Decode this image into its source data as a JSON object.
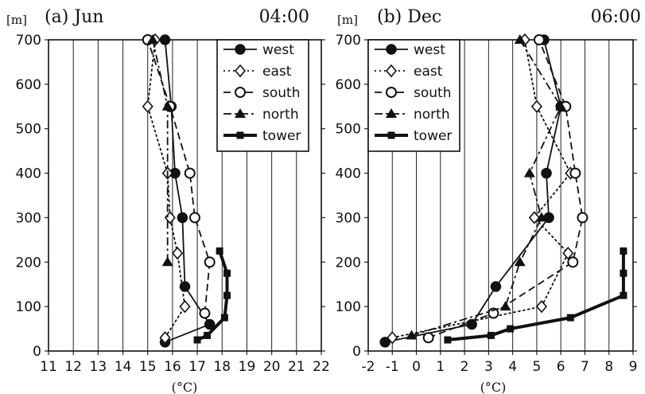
{
  "chart_data": [
    {
      "type": "line",
      "title": "(a) Jun",
      "time_label": "04:00",
      "ylabel": "[m]",
      "xlabel": "(°C)",
      "xlim": [
        11,
        22
      ],
      "ylim": [
        0,
        700
      ],
      "xticks": [
        "11",
        "12",
        "13",
        "14",
        "15",
        "16",
        "17",
        "18",
        "19",
        "20",
        "21",
        "22"
      ],
      "yticks": [
        "0",
        "100",
        "200",
        "300",
        "400",
        "500",
        "600",
        "700"
      ],
      "grid": "vertical",
      "legend": "top-right",
      "series": [
        {
          "name": "west",
          "marker": "filled-circle",
          "line": "solid",
          "points": [
            [
              15.7,
              20
            ],
            [
              17.5,
              60
            ],
            [
              16.5,
              145
            ],
            [
              16.4,
              300
            ],
            [
              16.1,
              400
            ],
            [
              15.95,
              550
            ],
            [
              15.7,
              700
            ]
          ]
        },
        {
          "name": "east",
          "marker": "open-diamond",
          "line": "dotted",
          "points": [
            [
              15.7,
              30
            ],
            [
              16.5,
              100
            ],
            [
              16.2,
              220
            ],
            [
              15.9,
              300
            ],
            [
              15.8,
              400
            ],
            [
              15.0,
              550
            ],
            [
              15.3,
              700
            ]
          ]
        },
        {
          "name": "south",
          "marker": "open-circle",
          "line": "dashed",
          "points": [
            [
              17.3,
              85
            ],
            [
              17.5,
              200
            ],
            [
              16.9,
              300
            ],
            [
              16.7,
              400
            ],
            [
              15.9,
              550
            ],
            [
              15.0,
              700
            ]
          ]
        },
        {
          "name": "north",
          "marker": "filled-triangle",
          "line": "dash-dot",
          "points": [
            [
              15.8,
              200
            ],
            [
              15.8,
              550
            ],
            [
              15.2,
              700
            ]
          ]
        },
        {
          "name": "tower",
          "marker": "filled-square",
          "line": "thick",
          "points": [
            [
              17.0,
              25
            ],
            [
              17.4,
              35
            ],
            [
              18.1,
              75
            ],
            [
              18.2,
              125
            ],
            [
              18.2,
              175
            ],
            [
              17.9,
              225
            ]
          ]
        }
      ]
    },
    {
      "type": "line",
      "title": "(b) Dec",
      "time_label": "06:00",
      "ylabel": "[m]",
      "xlabel": "(°C)",
      "xlim": [
        -2,
        9
      ],
      "ylim": [
        0,
        700
      ],
      "xticks": [
        "-2",
        "-1",
        "0",
        "1",
        "2",
        "3",
        "4",
        "5",
        "6",
        "7",
        "8",
        "9"
      ],
      "yticks": [
        "0",
        "100",
        "200",
        "300",
        "400",
        "500",
        "600",
        "700"
      ],
      "grid": "vertical",
      "legend": "top-left",
      "series": [
        {
          "name": "west",
          "marker": "filled-circle",
          "line": "solid",
          "points": [
            [
              -1.3,
              20
            ],
            [
              2.3,
              60
            ],
            [
              3.3,
              145
            ],
            [
              5.5,
              300
            ],
            [
              5.4,
              400
            ],
            [
              6.0,
              550
            ],
            [
              5.3,
              700
            ]
          ]
        },
        {
          "name": "east",
          "marker": "open-diamond",
          "line": "dotted",
          "points": [
            [
              -1.0,
              30
            ],
            [
              5.2,
              100
            ],
            [
              6.3,
              220
            ],
            [
              4.9,
              300
            ],
            [
              6.4,
              400
            ],
            [
              5.0,
              550
            ],
            [
              4.5,
              700
            ]
          ]
        },
        {
          "name": "south",
          "marker": "open-circle",
          "line": "dashed",
          "points": [
            [
              0.5,
              30
            ],
            [
              3.2,
              85
            ],
            [
              6.5,
              200
            ],
            [
              6.9,
              300
            ],
            [
              6.6,
              400
            ],
            [
              6.2,
              550
            ],
            [
              5.1,
              700
            ]
          ]
        },
        {
          "name": "north",
          "marker": "filled-triangle",
          "line": "dash-dot",
          "points": [
            [
              -0.2,
              35
            ],
            [
              3.7,
              100
            ],
            [
              4.3,
              200
            ],
            [
              5.2,
              300
            ],
            [
              4.7,
              400
            ],
            [
              6.0,
              550
            ],
            [
              4.3,
              700
            ]
          ]
        },
        {
          "name": "tower",
          "marker": "filled-square",
          "line": "thick",
          "points": [
            [
              1.3,
              25
            ],
            [
              3.1,
              35
            ],
            [
              3.9,
              50
            ],
            [
              6.4,
              75
            ],
            [
              8.6,
              125
            ],
            [
              8.6,
              175
            ],
            [
              8.6,
              225
            ]
          ]
        }
      ]
    }
  ]
}
